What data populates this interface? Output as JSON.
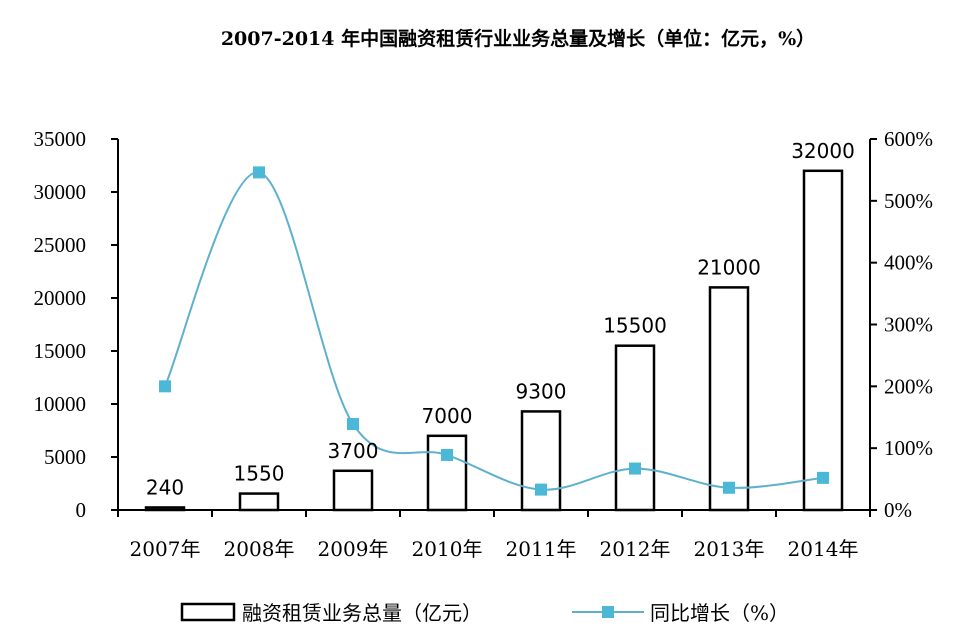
{
  "chart_data": {
    "type": "bar",
    "title": "2007-2014 年中国融资租赁行业业务总量及增长（单位：亿元，%）",
    "categories": [
      "2007年",
      "2008年",
      "2009年",
      "2010年",
      "2011年",
      "2012年",
      "2013年",
      "2014年"
    ],
    "series": [
      {
        "name": "融资租赁业务总量（亿元）",
        "kind": "bar",
        "axis": "left",
        "values": [
          240,
          1550,
          3700,
          7000,
          9300,
          15500,
          21000,
          32000
        ],
        "labels": [
          "240",
          "1550",
          "3700",
          "7000",
          "9300",
          "15500",
          "21000",
          "32000"
        ]
      },
      {
        "name": "同比增长（%）",
        "kind": "line",
        "axis": "right",
        "values": [
          200,
          546,
          139,
          89,
          33,
          67,
          36,
          52
        ]
      }
    ],
    "y_left": {
      "range": [
        0,
        35000
      ],
      "ticks": [
        "0",
        "5000",
        "10000",
        "15000",
        "20000",
        "25000",
        "30000",
        "35000"
      ]
    },
    "y_right": {
      "range": [
        0,
        600
      ],
      "ticks": [
        "0%",
        "100%",
        "200%",
        "300%",
        "400%",
        "500%",
        "600%"
      ]
    },
    "legend": {
      "position": "bottom",
      "bar_label": "融资租赁业务总量（亿元）",
      "line_label": "同比增长（%）"
    },
    "colors": {
      "bar_fill": "#ffffff",
      "bar_stroke": "#000000",
      "line": "#5fb0cf",
      "marker": "#4ab8d6"
    },
    "grid": false
  }
}
